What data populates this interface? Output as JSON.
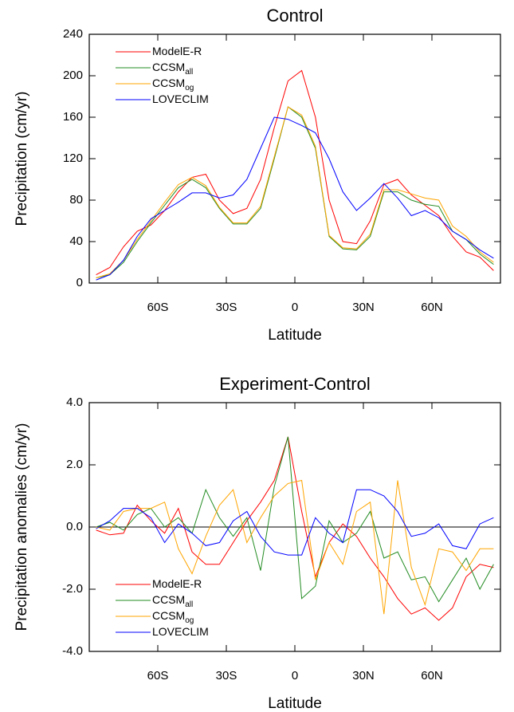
{
  "chart_data": [
    {
      "type": "line",
      "title": "Control",
      "xlabel": "Latitude",
      "ylabel": "Precipitation (cm/yr)",
      "x": [
        -87,
        -81,
        -75,
        -69,
        -63,
        -57,
        -51,
        -45,
        -39,
        -33,
        -27,
        -21,
        -15,
        -9,
        -3,
        3,
        9,
        15,
        21,
        27,
        33,
        39,
        45,
        51,
        57,
        63,
        69,
        75,
        81,
        87
      ],
      "xlim": [
        -90,
        90
      ],
      "xticks": [
        {
          "value": -60,
          "label": "60S"
        },
        {
          "value": -30,
          "label": "30S"
        },
        0,
        {
          "value": 30,
          "label": "30N"
        },
        {
          "value": 60,
          "label": "60N"
        }
      ],
      "ylim": [
        0,
        240
      ],
      "yticks": [
        0,
        40,
        80,
        120,
        160,
        200,
        240
      ],
      "series": [
        {
          "name": "ModelE-R",
          "color": "#ff0000",
          "values": [
            8,
            15,
            35,
            50,
            56,
            70,
            88,
            102,
            105,
            80,
            67,
            72,
            100,
            150,
            195,
            205,
            160,
            80,
            40,
            38,
            60,
            95,
            100,
            85,
            75,
            65,
            45,
            30,
            25,
            12
          ]
        },
        {
          "name": "CCSM",
          "subscript": "all",
          "color": "#228b22",
          "values": [
            5,
            8,
            20,
            40,
            58,
            75,
            92,
            100,
            92,
            72,
            57,
            57,
            72,
            120,
            170,
            160,
            130,
            45,
            33,
            32,
            45,
            88,
            88,
            80,
            76,
            74,
            50,
            42,
            28,
            18
          ]
        },
        {
          "name": "CCSM",
          "subscript": "og",
          "color": "#ffa500",
          "values": [
            5,
            9,
            22,
            42,
            60,
            78,
            95,
            102,
            94,
            73,
            58,
            58,
            74,
            122,
            170,
            162,
            132,
            46,
            34,
            33,
            47,
            90,
            90,
            86,
            82,
            80,
            55,
            45,
            30,
            20
          ]
        },
        {
          "name": "LOVECLIM",
          "color": "#0000ff",
          "values": [
            3,
            8,
            22,
            45,
            62,
            70,
            78,
            87,
            87,
            82,
            85,
            100,
            130,
            160,
            158,
            152,
            145,
            120,
            88,
            70,
            82,
            96,
            82,
            65,
            70,
            63,
            50,
            42,
            32,
            24
          ]
        }
      ]
    },
    {
      "type": "line",
      "title": "Experiment-Control",
      "xlabel": "Latitude",
      "ylabel": "Precipitation anomalies (cm/yr)",
      "x": [
        -87,
        -81,
        -75,
        -69,
        -63,
        -57,
        -51,
        -45,
        -39,
        -33,
        -27,
        -21,
        -15,
        -9,
        -3,
        3,
        9,
        15,
        21,
        27,
        33,
        39,
        45,
        51,
        57,
        63,
        69,
        75,
        81,
        87
      ],
      "xlim": [
        -90,
        90
      ],
      "xticks": [
        {
          "value": -60,
          "label": "60S"
        },
        {
          "value": -30,
          "label": "30S"
        },
        0,
        {
          "value": 30,
          "label": "30N"
        },
        {
          "value": 60,
          "label": "60N"
        }
      ],
      "ylim": [
        -4,
        4
      ],
      "yticks": [
        {
          "value": -4,
          "label": "-4.0"
        },
        {
          "value": -2,
          "label": "-2.0"
        },
        {
          "value": 0,
          "label": "0.0"
        },
        {
          "value": 2,
          "label": "2.0"
        },
        {
          "value": 4,
          "label": "4.0"
        }
      ],
      "reference_line": 0,
      "series": [
        {
          "name": "ModelE-R",
          "color": "#ff0000",
          "values": [
            -0.1,
            -0.25,
            -0.2,
            0.7,
            0.2,
            -0.2,
            0.6,
            -0.8,
            -1.2,
            -1.2,
            -0.5,
            0.2,
            0.8,
            1.5,
            2.9,
            0.5,
            -1.6,
            -0.5,
            0.1,
            -0.3,
            -1.0,
            -1.6,
            -2.3,
            -2.8,
            -2.6,
            -3.0,
            -2.6,
            -1.6,
            -1.2,
            -1.3
          ]
        },
        {
          "name": "CCSM",
          "subscript": "all",
          "color": "#228b22",
          "values": [
            0,
            0.15,
            -0.1,
            0.4,
            0.6,
            0,
            0.3,
            -0.2,
            1.2,
            0.3,
            -0.3,
            0.3,
            -1.4,
            1.3,
            2.9,
            -2.3,
            -1.9,
            0.2,
            -0.5,
            -0.2,
            0.5,
            -1.0,
            -0.8,
            -1.7,
            -1.6,
            -2.4,
            -1.7,
            -1.0,
            -2.0,
            -1.2
          ]
        },
        {
          "name": "CCSM",
          "subscript": "og",
          "color": "#ffa500",
          "values": [
            0,
            -0.1,
            0.5,
            0.6,
            0.6,
            0.8,
            -0.7,
            -1.5,
            -0.3,
            0.7,
            1.2,
            -0.5,
            0.3,
            1.0,
            1.4,
            1.5,
            -1.7,
            -0.5,
            -1.2,
            0.5,
            0.8,
            -2.8,
            1.5,
            -1.3,
            -2.5,
            -0.7,
            -0.8,
            -1.4,
            -0.7,
            -0.7
          ]
        },
        {
          "name": "LOVECLIM",
          "color": "#0000ff",
          "values": [
            -0.05,
            0.2,
            0.6,
            0.6,
            0.3,
            -0.5,
            0.1,
            -0.2,
            -0.6,
            -0.5,
            0.2,
            0.5,
            -0.3,
            -0.8,
            -0.9,
            -0.9,
            0.3,
            -0.2,
            -0.5,
            1.2,
            1.2,
            1.0,
            0.5,
            -0.3,
            -0.2,
            0.1,
            -0.6,
            -0.7,
            0.1,
            0.3
          ]
        }
      ]
    }
  ]
}
